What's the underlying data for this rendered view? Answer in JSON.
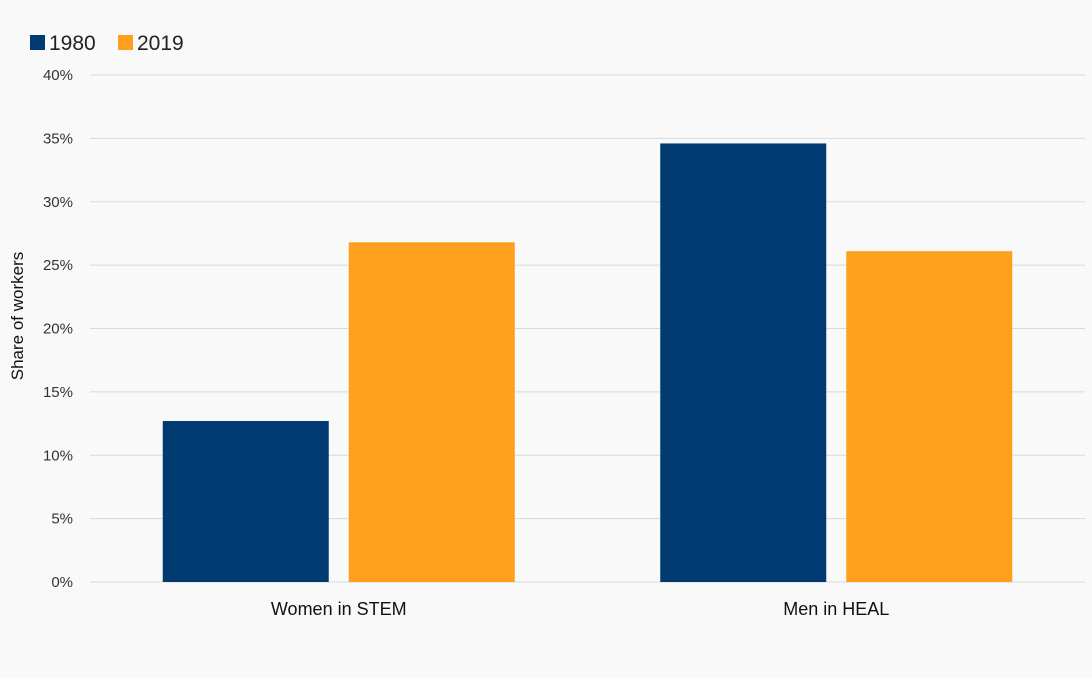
{
  "chart_data": {
    "type": "bar",
    "categories": [
      "Women in STEM",
      "Men in HEAL"
    ],
    "series": [
      {
        "name": "1980",
        "values": [
          12.7,
          34.6
        ],
        "color": "#003a70"
      },
      {
        "name": "2019",
        "values": [
          26.8,
          26.1
        ],
        "color": "#ffa01c"
      }
    ],
    "title": "",
    "xlabel": "",
    "ylabel": "Share of workers",
    "ylim": [
      0,
      40
    ],
    "yticks": [
      0,
      5,
      10,
      15,
      20,
      25,
      30,
      35,
      40
    ],
    "ytick_labels": [
      "0%",
      "5%",
      "10%",
      "15%",
      "20%",
      "25%",
      "30%",
      "35%",
      "40%"
    ],
    "grid": true,
    "legend_position": "top-left",
    "gridline_color": "#d9d9d9"
  }
}
